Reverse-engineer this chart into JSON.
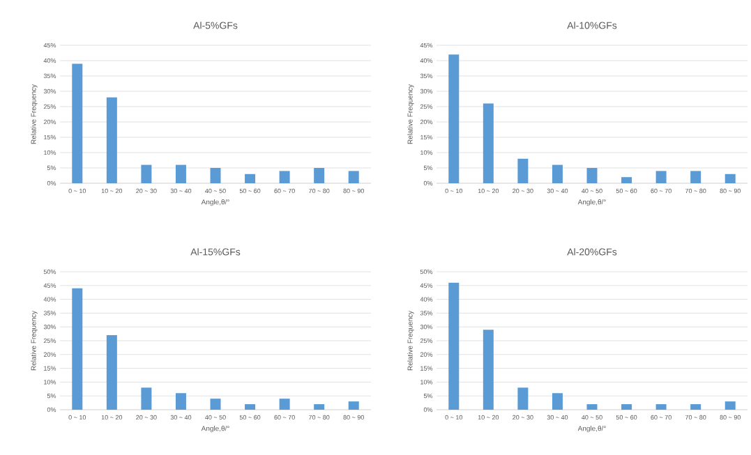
{
  "chart_data": [
    {
      "type": "bar",
      "title": "Al-5%GFs",
      "xlabel": "Angle,θ/°",
      "ylabel": "Relative Frequency",
      "categories": [
        "0 ~ 10",
        "10 ~ 20",
        "20 ~ 30",
        "30 ~ 40",
        "40 ~ 50",
        "50 ~ 60",
        "60 ~ 70",
        "70 ~ 80",
        "80 ~ 90"
      ],
      "values": [
        39,
        28,
        6,
        6,
        5,
        3,
        4,
        5,
        4
      ],
      "color": "#5b9bd5",
      "ylim": [
        0,
        45
      ],
      "yticks": [
        {
          "value": 0,
          "label": "0%"
        },
        {
          "value": 5,
          "label": "5%"
        },
        {
          "value": 10,
          "label": "10%"
        },
        {
          "value": 15,
          "label": "15%"
        },
        {
          "value": 20,
          "label": "20%"
        },
        {
          "value": 25,
          "label": "25%"
        },
        {
          "value": 30,
          "label": "30%"
        },
        {
          "value": 35,
          "label": "35%"
        },
        {
          "value": 40,
          "label": "40%"
        },
        {
          "value": 45,
          "label": "45%"
        }
      ],
      "grid": "y"
    },
    {
      "type": "bar",
      "title": "Al-10%GFs",
      "xlabel": "Angle,θ/°",
      "ylabel": "Relative Frequency",
      "categories": [
        "0 ~ 10",
        "10 ~ 20",
        "20 ~ 30",
        "30 ~ 40",
        "40 ~ 50",
        "50 ~ 60",
        "60 ~ 70",
        "70 ~ 80",
        "80 ~ 90"
      ],
      "values": [
        42,
        26,
        8,
        6,
        5,
        2,
        4,
        4,
        3
      ],
      "color": "#5b9bd5",
      "ylim": [
        0,
        45
      ],
      "yticks": [
        {
          "value": 0,
          "label": "0%"
        },
        {
          "value": 5,
          "label": "5%"
        },
        {
          "value": 10,
          "label": "10%"
        },
        {
          "value": 15,
          "label": "15%"
        },
        {
          "value": 20,
          "label": "20%"
        },
        {
          "value": 25,
          "label": "25%"
        },
        {
          "value": 30,
          "label": "30%"
        },
        {
          "value": 35,
          "label": "35%"
        },
        {
          "value": 40,
          "label": "40%"
        },
        {
          "value": 45,
          "label": "45%"
        }
      ],
      "grid": "y"
    },
    {
      "type": "bar",
      "title": "Al-15%GFs",
      "xlabel": "Angle,θ/°",
      "ylabel": "Relative Frequency",
      "categories": [
        "0 ~ 10",
        "10 ~ 20",
        "20 ~ 30",
        "30 ~ 40",
        "40 ~ 50",
        "50 ~ 60",
        "60 ~ 70",
        "70 ~ 80",
        "80 ~ 90"
      ],
      "values": [
        44,
        27,
        8,
        6,
        4,
        2,
        4,
        2,
        3
      ],
      "color": "#5b9bd5",
      "ylim": [
        0,
        50
      ],
      "yticks": [
        {
          "value": 0,
          "label": "0%"
        },
        {
          "value": 5,
          "label": "5%"
        },
        {
          "value": 10,
          "label": "10%"
        },
        {
          "value": 15,
          "label": "15%"
        },
        {
          "value": 20,
          "label": "20%"
        },
        {
          "value": 25,
          "label": "25%"
        },
        {
          "value": 30,
          "label": "30%"
        },
        {
          "value": 35,
          "label": "35%"
        },
        {
          "value": 40,
          "label": "40%"
        },
        {
          "value": 45,
          "label": "45%"
        },
        {
          "value": 50,
          "label": "50%"
        }
      ],
      "grid": "y"
    },
    {
      "type": "bar",
      "title": "Al-20%GFs",
      "xlabel": "Angle,θ/°",
      "ylabel": "Relative Frequency",
      "categories": [
        "0 ~ 10",
        "10 ~ 20",
        "20 ~ 30",
        "30 ~ 40",
        "40 ~ 50",
        "50 ~ 60",
        "60 ~ 70",
        "70 ~ 80",
        "80 ~ 90"
      ],
      "values": [
        46,
        29,
        8,
        6,
        2,
        2,
        2,
        2,
        3
      ],
      "color": "#5b9bd5",
      "ylim": [
        0,
        50
      ],
      "yticks": [
        {
          "value": 0,
          "label": "0%"
        },
        {
          "value": 5,
          "label": "5%"
        },
        {
          "value": 10,
          "label": "10%"
        },
        {
          "value": 15,
          "label": "15%"
        },
        {
          "value": 20,
          "label": "20%"
        },
        {
          "value": 25,
          "label": "25%"
        },
        {
          "value": 30,
          "label": "30%"
        },
        {
          "value": 35,
          "label": "35%"
        },
        {
          "value": 40,
          "label": "40%"
        },
        {
          "value": 45,
          "label": "45%"
        },
        {
          "value": 50,
          "label": "50%"
        }
      ],
      "grid": "y"
    }
  ]
}
